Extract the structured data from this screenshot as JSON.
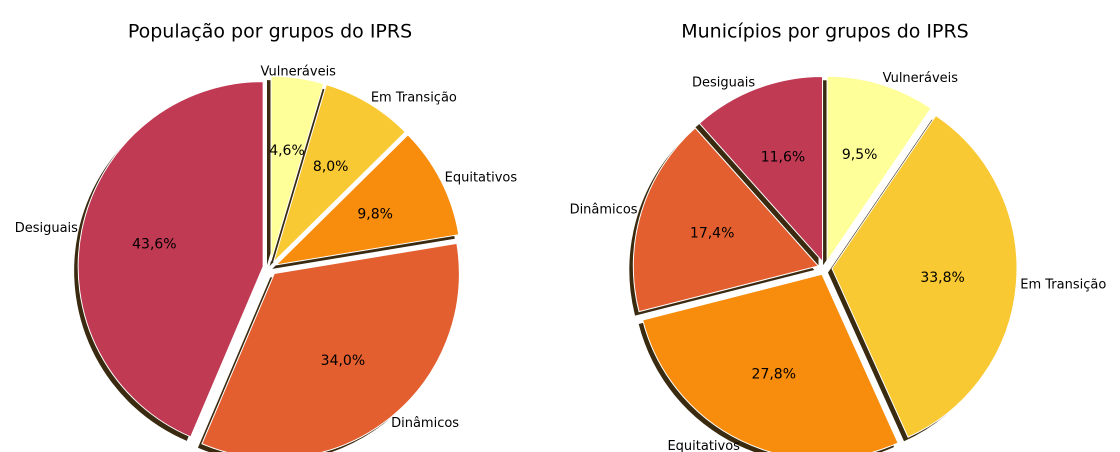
{
  "chart_data": [
    {
      "type": "pie",
      "title": "População por grupos do IPRS",
      "categories": [
        "Vulneráveis",
        "Em Transição",
        "Equitativos",
        "Dinâmicos",
        "Desiguais"
      ],
      "values": [
        4.6,
        8.0,
        9.8,
        34.0,
        43.6
      ],
      "value_labels": [
        "4,6%",
        "8,0%",
        "9,8%",
        "34,0%",
        "43,6%"
      ],
      "colors": [
        "#ffff99",
        "#f9c933",
        "#f88c0c",
        "#e45f2f",
        "#c03a54"
      ]
    },
    {
      "type": "pie",
      "title": "Municípios por grupos do IPRS",
      "categories": [
        "Vulneráveis",
        "Em Transição",
        "Equitativos",
        "Dinâmicos",
        "Desiguais"
      ],
      "values": [
        9.5,
        33.8,
        27.8,
        17.4,
        11.6
      ],
      "value_labels": [
        "9,5%",
        "33,8%",
        "27,8%",
        "17,4%",
        "11,6%"
      ],
      "colors": [
        "#ffff99",
        "#f9c933",
        "#f88c0c",
        "#e45f2f",
        "#c03a54"
      ]
    }
  ]
}
